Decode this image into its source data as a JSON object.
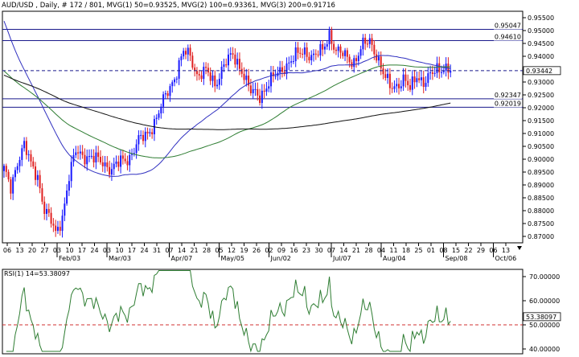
{
  "header": {
    "symbol": "AUD/USD",
    "text": "AUD/USD , Daily, # 172 / 801, MVG(1) 50=0.93525, MVG(2) 100=0.93361, MVG(3) 200=0.91716"
  },
  "colors": {
    "bull": "#1a1aff",
    "bear": "#e02020",
    "ma50": "#3030c0",
    "ma100": "#2e7d32",
    "ma200": "#111111",
    "level_line": "#1a1a8c",
    "current_price_line": "#1a1a8c",
    "rsi_line": "#2e7d32",
    "rsi_level": "#d03030",
    "frame": "#000000"
  },
  "price_panel": {
    "y_ticks": [
      "0.95500",
      "0.95000",
      "0.94500",
      "0.94000",
      "0.93500",
      "0.93000",
      "0.92500",
      "0.92000",
      "0.91500",
      "0.91000",
      "0.90500",
      "0.90000",
      "0.89500",
      "0.89000",
      "0.88500",
      "0.88000",
      "0.87500",
      "0.87000"
    ],
    "levels": [
      {
        "value": 0.95047,
        "label": "0.95047"
      },
      {
        "value": 0.9461,
        "label": "0.94610"
      },
      {
        "value": 0.92347,
        "label": "0.92347"
      },
      {
        "value": 0.92019,
        "label": "0.92019"
      }
    ],
    "current_price": {
      "value": 0.93442,
      "label": "0.93442"
    }
  },
  "x_axis": {
    "day_ticks": [
      "06",
      "13",
      "20",
      "27",
      "03",
      "10",
      "17",
      "24",
      "03",
      "10",
      "17",
      "24",
      "31",
      "07",
      "14",
      "21",
      "28",
      "05",
      "12",
      "19",
      "26",
      "02",
      "09",
      "16",
      "23",
      "30",
      "07",
      "14",
      "21",
      "28",
      "04",
      "11",
      "18",
      "25",
      "01",
      "08",
      "15",
      "22",
      "29",
      "06",
      "13"
    ],
    "month_labels": [
      {
        "label": "Feb/03",
        "tick_index": 4
      },
      {
        "label": "Mar/03",
        "tick_index": 8
      },
      {
        "label": "Apr/07",
        "tick_index": 13
      },
      {
        "label": "May/05",
        "tick_index": 17
      },
      {
        "label": "Jun/02",
        "tick_index": 21
      },
      {
        "label": "Jul/07",
        "tick_index": 26
      },
      {
        "label": "Aug/04",
        "tick_index": 30
      },
      {
        "label": "Sep/08",
        "tick_index": 35
      },
      {
        "label": "Oct/06",
        "tick_index": 39
      }
    ]
  },
  "rsi_panel": {
    "title": "RSI(1) 14=53.38097",
    "y_ticks": [
      "70.00000",
      "60.00000",
      "50.00000",
      "40.00000"
    ],
    "current_label": "53.38097",
    "level": 50
  },
  "chart_data": [
    {
      "type": "candlestick",
      "title": "AUD/USD , Daily, # 172 / 801",
      "ylim": [
        0.8675,
        0.9575
      ],
      "series": [
        {
          "name": "MVG(1) 50",
          "last": 0.93525
        },
        {
          "name": "MVG(2) 100",
          "last": 0.93361
        },
        {
          "name": "MVG(3) 200",
          "last": 0.91716
        }
      ],
      "horizontal_levels": [
        0.95047,
        0.9461,
        0.92347,
        0.92019
      ],
      "last_close": 0.93442,
      "approx_close_path": [
        [
          0,
          0.8955
        ],
        [
          3,
          0.8885
        ],
        [
          6,
          0.8995
        ],
        [
          9,
          0.9055
        ],
        [
          12,
          0.8975
        ],
        [
          15,
          0.8935
        ],
        [
          18,
          0.8805
        ],
        [
          21,
          0.8755
        ],
        [
          23,
          0.871
        ],
        [
          26,
          0.878
        ],
        [
          29,
          0.893
        ],
        [
          32,
          0.903
        ],
        [
          36,
          0.9015
        ],
        [
          40,
          0.9
        ],
        [
          44,
          0.899
        ],
        [
          48,
          0.896
        ],
        [
          52,
          0.899
        ],
        [
          56,
          0.901
        ],
        [
          60,
          0.907
        ],
        [
          64,
          0.91
        ],
        [
          68,
          0.916
        ],
        [
          72,
          0.9245
        ],
        [
          76,
          0.932
        ],
        [
          80,
          0.9415
        ],
        [
          83,
          0.94
        ],
        [
          86,
          0.933
        ],
        [
          90,
          0.934
        ],
        [
          94,
          0.929
        ],
        [
          98,
          0.937
        ],
        [
          102,
          0.94
        ],
        [
          106,
          0.935
        ],
        [
          110,
          0.926
        ],
        [
          114,
          0.9245
        ],
        [
          118,
          0.93
        ],
        [
          122,
          0.933
        ],
        [
          126,
          0.937
        ],
        [
          130,
          0.94
        ],
        [
          134,
          0.942
        ],
        [
          138,
          0.94
        ],
        [
          142,
          0.942
        ],
        [
          145,
          0.949
        ],
        [
          148,
          0.942
        ],
        [
          152,
          0.94
        ],
        [
          156,
          0.938
        ],
        [
          160,
          0.944
        ],
        [
          163,
          0.946
        ],
        [
          166,
          0.941
        ],
        [
          169,
          0.933
        ],
        [
          172,
          0.928
        ],
        [
          175,
          0.929
        ],
        [
          178,
          0.931
        ],
        [
          181,
          0.927
        ],
        [
          184,
          0.933
        ],
        [
          187,
          0.93
        ],
        [
          190,
          0.932
        ],
        [
          193,
          0.935
        ],
        [
          196,
          0.936
        ],
        [
          199,
          0.9344
        ]
      ]
    },
    {
      "type": "line",
      "title": "RSI(1) 14=53.38097",
      "ylim": [
        38,
        73
      ],
      "levels": [
        50
      ],
      "last": 53.38097
    }
  ]
}
